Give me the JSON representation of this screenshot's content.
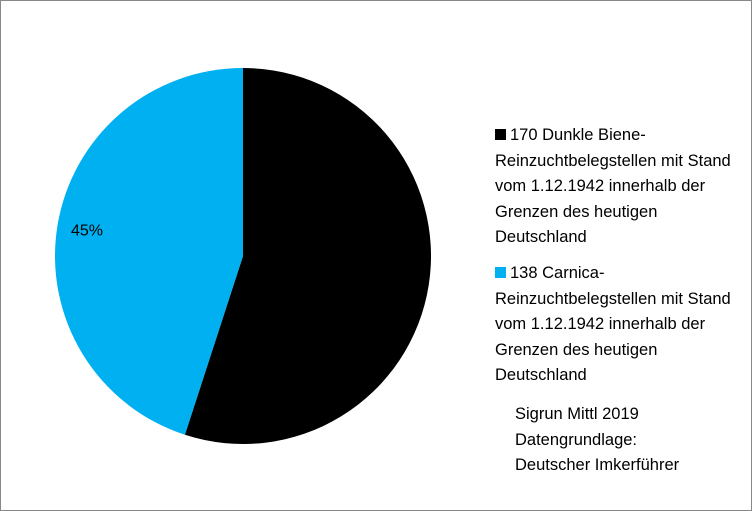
{
  "chart_data": {
    "type": "pie",
    "categories": [
      "170 Dunkle Biene-Reinzuchtbelegstellen mit Stand vom 1.12.1942 innerhalb der Grenzen des heutigen Deutschland",
      "138 Carnica-Reinzuchtbelegstellen mit Stand vom 1.12.1942 innerhalb der Grenzen des heutigen Deutschland"
    ],
    "values": [
      55,
      45
    ],
    "value_labels": [
      null,
      "45%"
    ],
    "colors": [
      "#000000",
      "#00b0f0"
    ],
    "annotations": [
      "Sigrun Mittl 2019",
      "Datengrundlage:",
      "Deutscher Imkerführer"
    ]
  }
}
